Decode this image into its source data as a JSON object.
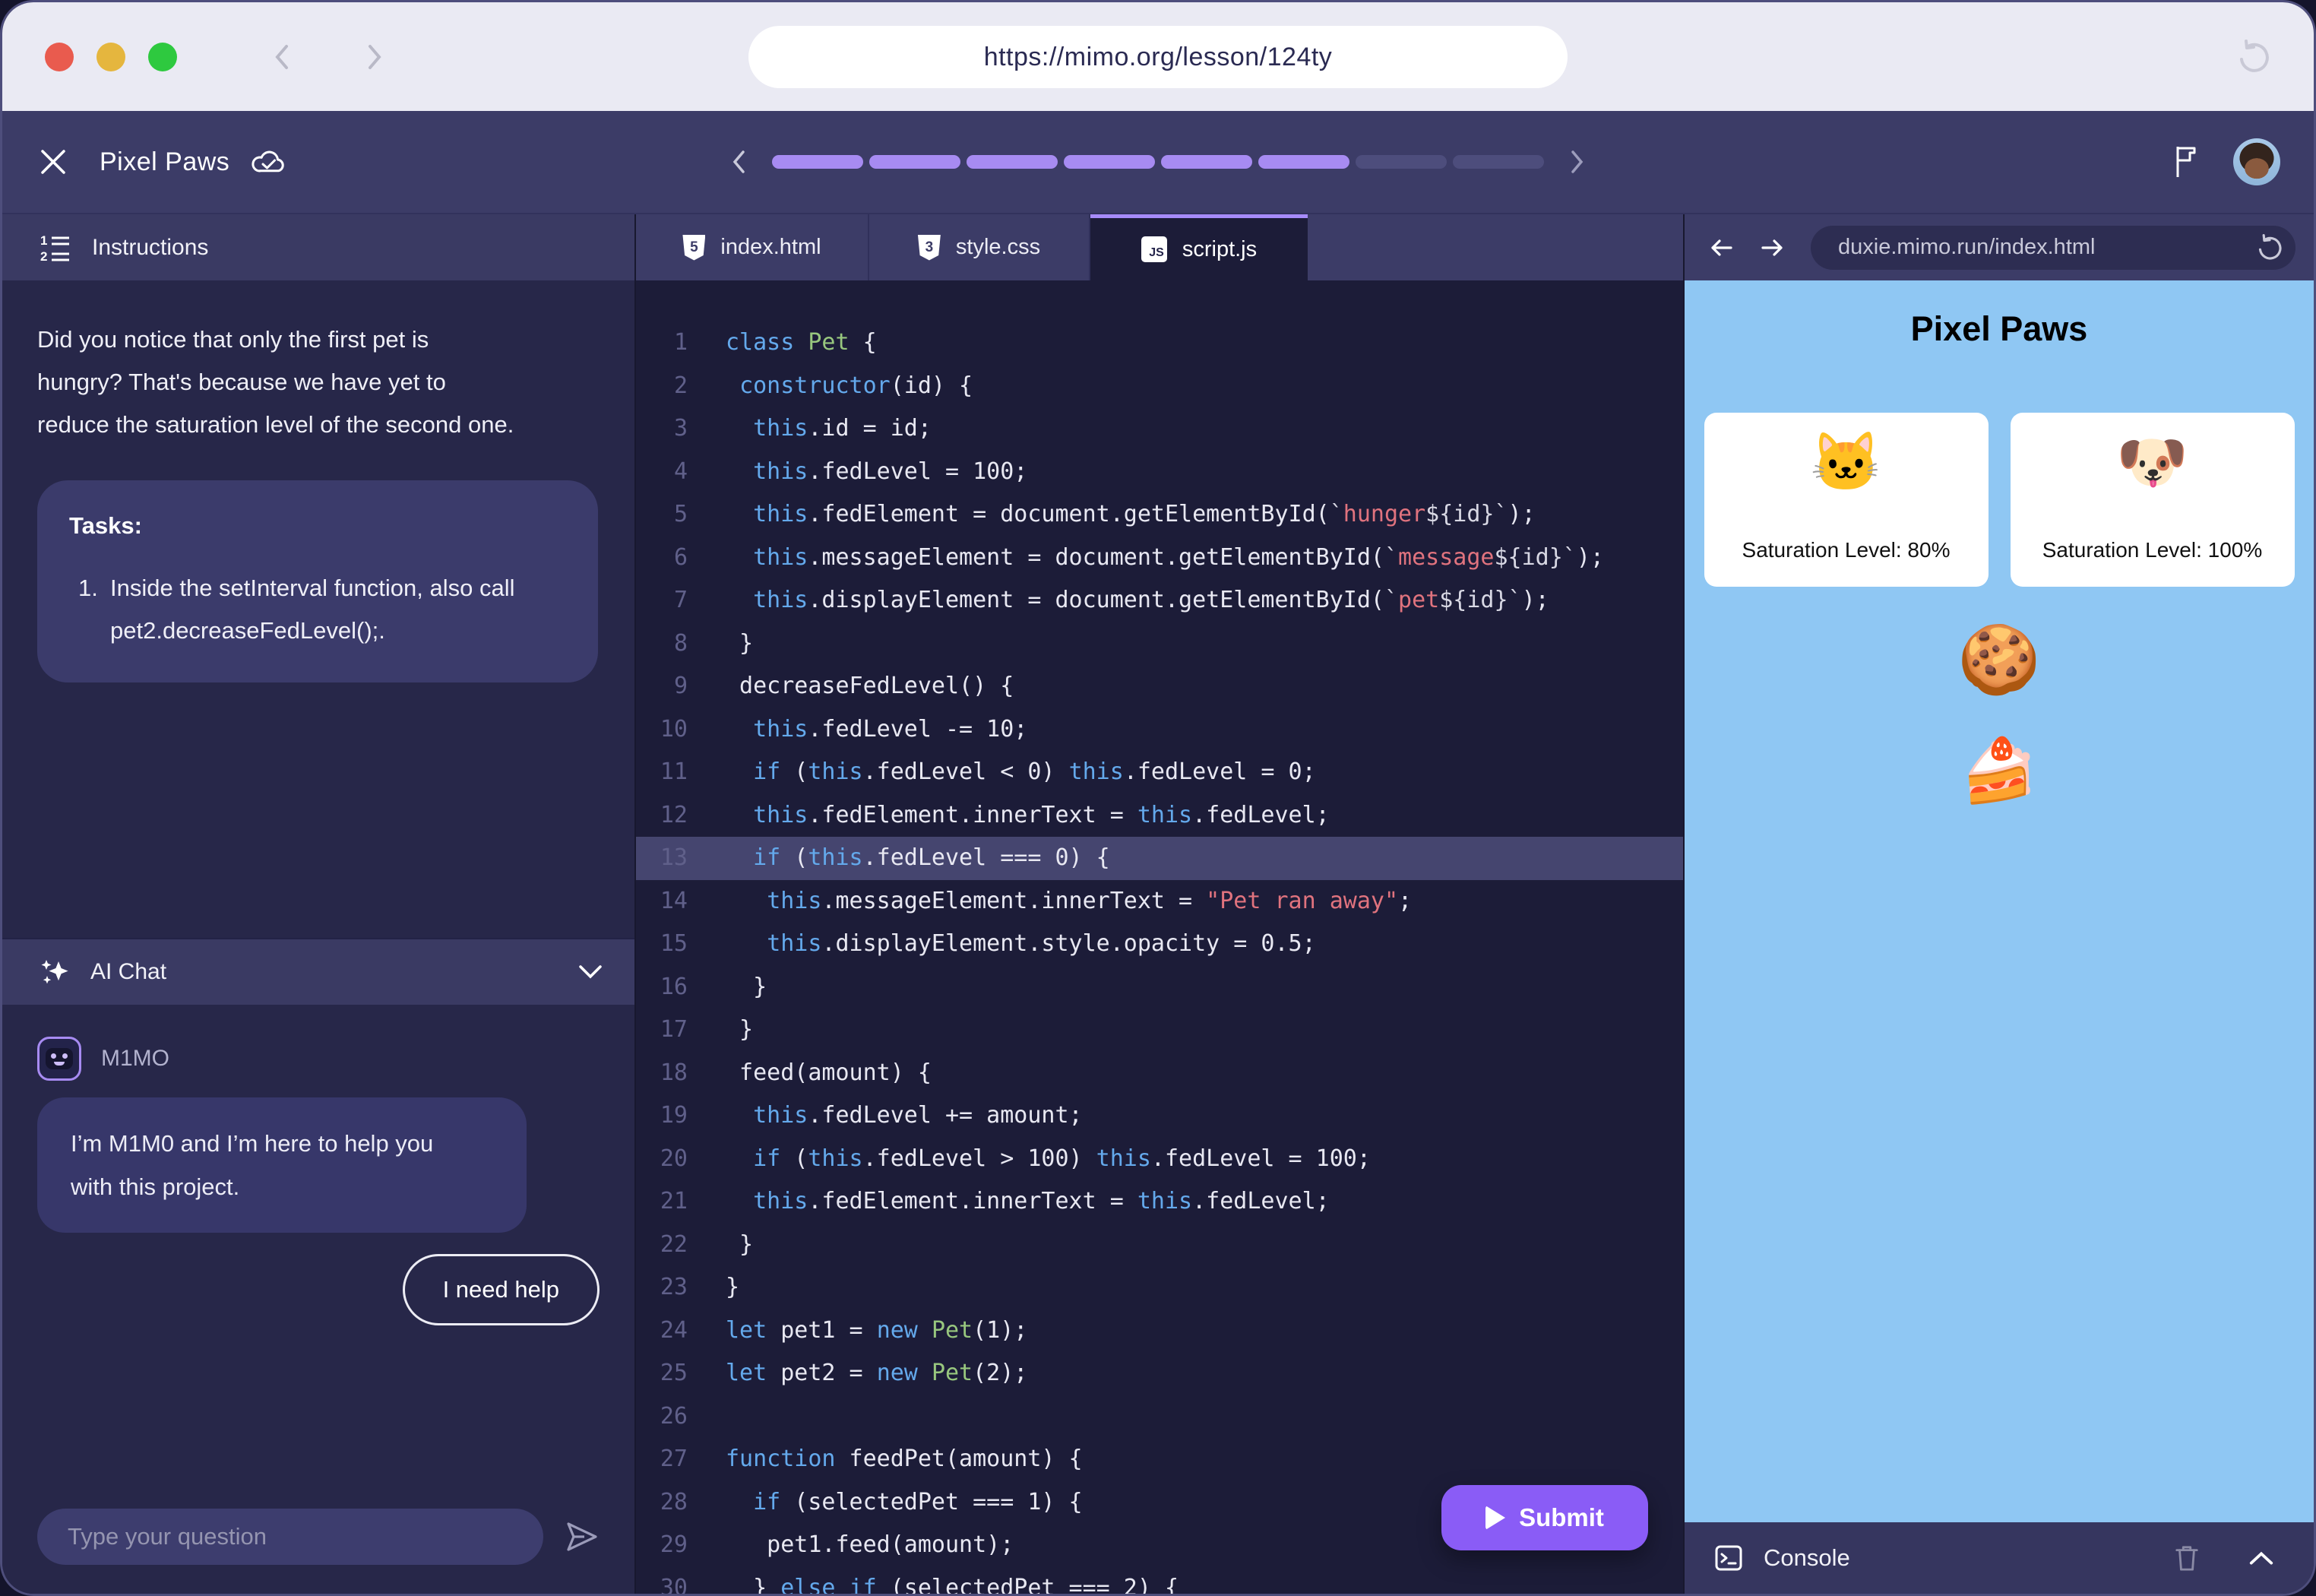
{
  "chrome": {
    "url": "https://mimo.org/lesson/124ty"
  },
  "header": {
    "title": "Pixel Paws",
    "progress": {
      "total": 8,
      "filled": 6
    }
  },
  "left": {
    "instructions_title": "Instructions",
    "paragraph_lines": [
      "Did you notice that only the first pet is",
      "hungry? That's because we have yet to",
      "reduce the saturation level of the second one."
    ],
    "tasks_title": "Tasks:",
    "task": {
      "num": "1.",
      "lines": [
        "Inside the setInterval function, also call",
        "pet2.decreaseFedLevel();."
      ]
    },
    "chat_title": "AI Chat",
    "bot_name": "M1MO",
    "bot_message_lines": [
      "I’m M1M0 and I’m here to help you",
      "with this project."
    ],
    "help_button": "I need help",
    "input_placeholder": "Type your question"
  },
  "editor": {
    "tabs": [
      {
        "label": "index.html"
      },
      {
        "label": "style.css"
      },
      {
        "label": "script.js"
      }
    ],
    "active_tab": "script.js",
    "submit_label": "Submit",
    "highlight_line": 13,
    "lines": [
      [
        [
          "kw",
          "class"
        ],
        [
          "pl",
          " "
        ],
        [
          "cls",
          "Pet"
        ],
        [
          "pl",
          " {"
        ]
      ],
      [
        [
          "pl",
          " "
        ],
        [
          "kw",
          "constructor"
        ],
        [
          "pl",
          "(id) {"
        ]
      ],
      [
        [
          "pl",
          "  "
        ],
        [
          "kw",
          "this"
        ],
        [
          "pl",
          ".id = id;"
        ]
      ],
      [
        [
          "pl",
          "  "
        ],
        [
          "kw",
          "this"
        ],
        [
          "pl",
          ".fedLevel = 100;"
        ]
      ],
      [
        [
          "pl",
          "  "
        ],
        [
          "kw",
          "this"
        ],
        [
          "pl",
          ".fedElement = document.getElementById("
        ],
        [
          "tpl",
          "`"
        ],
        [
          "str",
          "hunger"
        ],
        [
          "tpl",
          "${id}`"
        ],
        [
          "pl",
          ");"
        ]
      ],
      [
        [
          "pl",
          "  "
        ],
        [
          "kw",
          "this"
        ],
        [
          "pl",
          ".messageElement = document.getElementById("
        ],
        [
          "tpl",
          "`"
        ],
        [
          "str",
          "message"
        ],
        [
          "tpl",
          "${id}`"
        ],
        [
          "pl",
          ");"
        ]
      ],
      [
        [
          "pl",
          "  "
        ],
        [
          "kw",
          "this"
        ],
        [
          "pl",
          ".displayElement = document.getElementById("
        ],
        [
          "tpl",
          "`"
        ],
        [
          "str",
          "pet"
        ],
        [
          "tpl",
          "${id}`"
        ],
        [
          "pl",
          ");"
        ]
      ],
      [
        [
          "pl",
          " }"
        ]
      ],
      [
        [
          "pl",
          " decreaseFedLevel() {"
        ]
      ],
      [
        [
          "pl",
          "  "
        ],
        [
          "kw",
          "this"
        ],
        [
          "pl",
          ".fedLevel -= 10;"
        ]
      ],
      [
        [
          "pl",
          "  "
        ],
        [
          "kw",
          "if"
        ],
        [
          "pl",
          " ("
        ],
        [
          "kw",
          "this"
        ],
        [
          "pl",
          ".fedLevel < 0) "
        ],
        [
          "kw",
          "this"
        ],
        [
          "pl",
          ".fedLevel = 0;"
        ]
      ],
      [
        [
          "pl",
          "  "
        ],
        [
          "kw",
          "this"
        ],
        [
          "pl",
          ".fedElement.innerText = "
        ],
        [
          "kw",
          "this"
        ],
        [
          "pl",
          ".fedLevel;"
        ]
      ],
      [
        [
          "pl",
          "  "
        ],
        [
          "kw",
          "if"
        ],
        [
          "pl",
          " ("
        ],
        [
          "kw",
          "this"
        ],
        [
          "pl",
          ".fedLevel === 0) {"
        ]
      ],
      [
        [
          "pl",
          "   "
        ],
        [
          "kw",
          "this"
        ],
        [
          "pl",
          ".messageElement.innerText = "
        ],
        [
          "str",
          "\"Pet ran away\""
        ],
        [
          "pl",
          ";"
        ]
      ],
      [
        [
          "pl",
          "   "
        ],
        [
          "kw",
          "this"
        ],
        [
          "pl",
          ".displayElement.style.opacity = 0.5;"
        ]
      ],
      [
        [
          "pl",
          "  }"
        ]
      ],
      [
        [
          "pl",
          " }"
        ]
      ],
      [
        [
          "pl",
          " feed(amount) {"
        ]
      ],
      [
        [
          "pl",
          "  "
        ],
        [
          "kw",
          "this"
        ],
        [
          "pl",
          ".fedLevel += amount;"
        ]
      ],
      [
        [
          "pl",
          "  "
        ],
        [
          "kw",
          "if"
        ],
        [
          "pl",
          " ("
        ],
        [
          "kw",
          "this"
        ],
        [
          "pl",
          ".fedLevel > 100) "
        ],
        [
          "kw",
          "this"
        ],
        [
          "pl",
          ".fedLevel = 100;"
        ]
      ],
      [
        [
          "pl",
          "  "
        ],
        [
          "kw",
          "this"
        ],
        [
          "pl",
          ".fedElement.innerText = "
        ],
        [
          "kw",
          "this"
        ],
        [
          "pl",
          ".fedLevel;"
        ]
      ],
      [
        [
          "pl",
          " }"
        ]
      ],
      [
        [
          "pl",
          "}"
        ]
      ],
      [
        [
          "kw",
          "let"
        ],
        [
          "pl",
          " pet1 = "
        ],
        [
          "kw",
          "new"
        ],
        [
          "pl",
          " "
        ],
        [
          "cls",
          "Pet"
        ],
        [
          "pl",
          "(1);"
        ]
      ],
      [
        [
          "kw",
          "let"
        ],
        [
          "pl",
          " pet2 = "
        ],
        [
          "kw",
          "new"
        ],
        [
          "pl",
          " "
        ],
        [
          "cls",
          "Pet"
        ],
        [
          "pl",
          "(2);"
        ]
      ],
      [],
      [
        [
          "kw",
          "function"
        ],
        [
          "pl",
          " feedPet(amount) {"
        ]
      ],
      [
        [
          "pl",
          "  "
        ],
        [
          "kw",
          "if"
        ],
        [
          "pl",
          " (selectedPet === 1) {"
        ]
      ],
      [
        [
          "pl",
          "   pet1.feed(amount);"
        ]
      ],
      [
        [
          "pl",
          "  } "
        ],
        [
          "kw",
          "else"
        ],
        [
          "pl",
          " "
        ],
        [
          "kw",
          "if"
        ],
        [
          "pl",
          " (selectedPet === 2) {"
        ]
      ]
    ]
  },
  "preview": {
    "url": "duxie.mimo.run/index.html",
    "title": "Pixel Paws",
    "pets": [
      {
        "emoji": "🐱",
        "label": "Saturation Level: 80%"
      },
      {
        "emoji": "🐶",
        "label": "Saturation Level: 100%"
      }
    ],
    "treats": [
      {
        "emoji": "🍪"
      },
      {
        "emoji": "🍰"
      }
    ],
    "console_label": "Console"
  },
  "colors": {
    "accent_purple": "#A78BF2",
    "submit_purple": "#8A5CF6",
    "header_indigo": "#3C3C67",
    "panel_indigo": "#272749",
    "editor_bg": "#1C1C38",
    "preview_blue": "#8FC7F3",
    "code_keyword": "#64A9EC",
    "code_class": "#98C77E",
    "code_string": "#E0737E",
    "traffic_red": "#E95B4E",
    "traffic_yellow": "#E5B63E",
    "traffic_green": "#2EC93F"
  }
}
